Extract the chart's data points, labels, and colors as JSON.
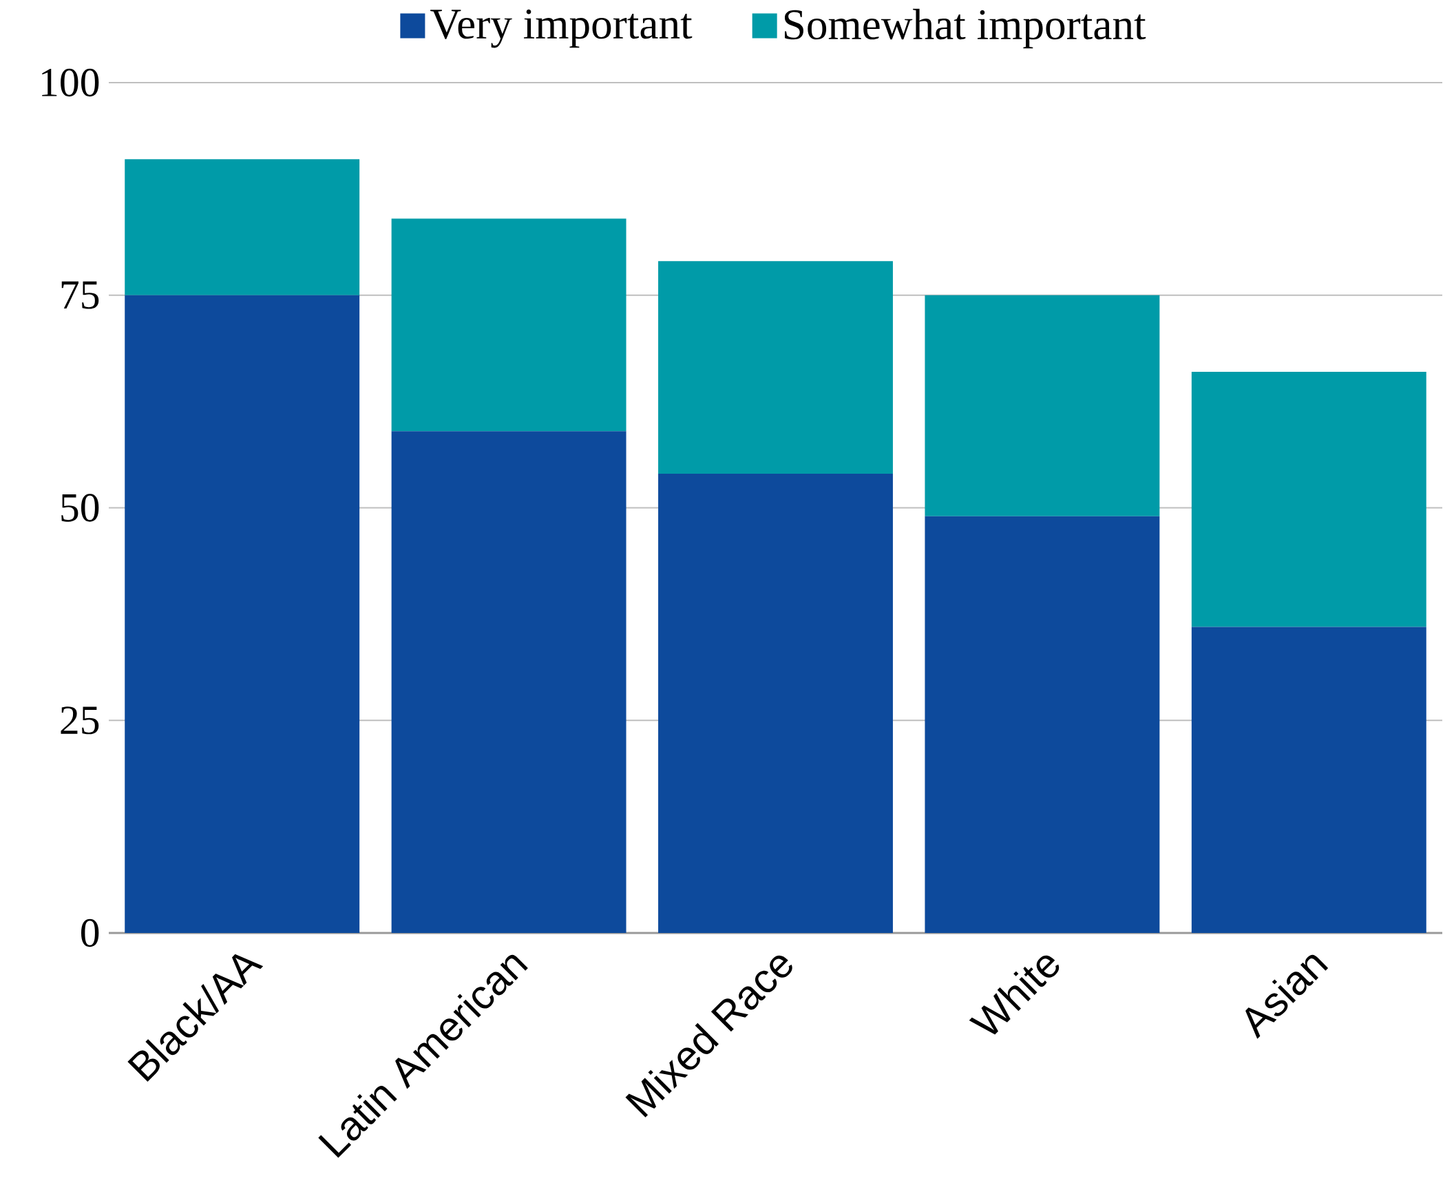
{
  "chart_data": {
    "type": "bar",
    "stacked": true,
    "categories": [
      "Black/AA",
      "Latin American",
      "Mixed Race",
      "White",
      "Asian"
    ],
    "series": [
      {
        "name": "Very important",
        "color": "#0d4a9c",
        "values": [
          75,
          59,
          54,
          49,
          36
        ]
      },
      {
        "name": "Somewhat important",
        "color": "#009ba8",
        "values": [
          16,
          25,
          25,
          26,
          30
        ]
      }
    ],
    "ylim": [
      0,
      100
    ],
    "yticks": [
      0,
      25,
      50,
      75,
      100
    ],
    "grid": "y",
    "legend": "top"
  }
}
